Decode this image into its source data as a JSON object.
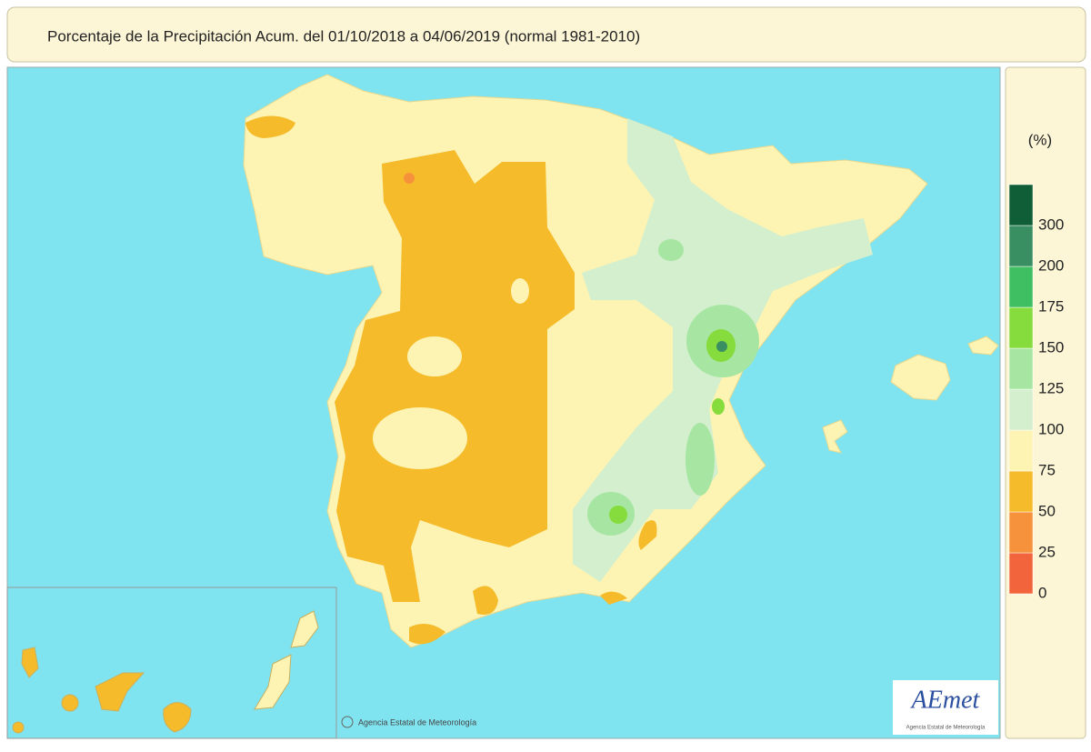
{
  "header": {
    "title": "Porcentaje de la Precipitación Acum. del 01/10/2018 a  04/06/2019  (normal 1981-2010)"
  },
  "legend": {
    "unit": "(%)",
    "colors": [
      "#f2643c",
      "#f6923c",
      "#f5bb2a",
      "#fdf3b2",
      "#d3efce",
      "#a6e6a2",
      "#86dc3c",
      "#3fbf62",
      "#3a8f62",
      "#0f5e37"
    ],
    "ticks": [
      0,
      25,
      50,
      75,
      100,
      125,
      150,
      175,
      200,
      300
    ]
  },
  "credit": "Agencia Estatal de Meteorología",
  "logo": {
    "name": "AEmet",
    "subtitle": "Agencia Estatal de Meteorología"
  }
}
